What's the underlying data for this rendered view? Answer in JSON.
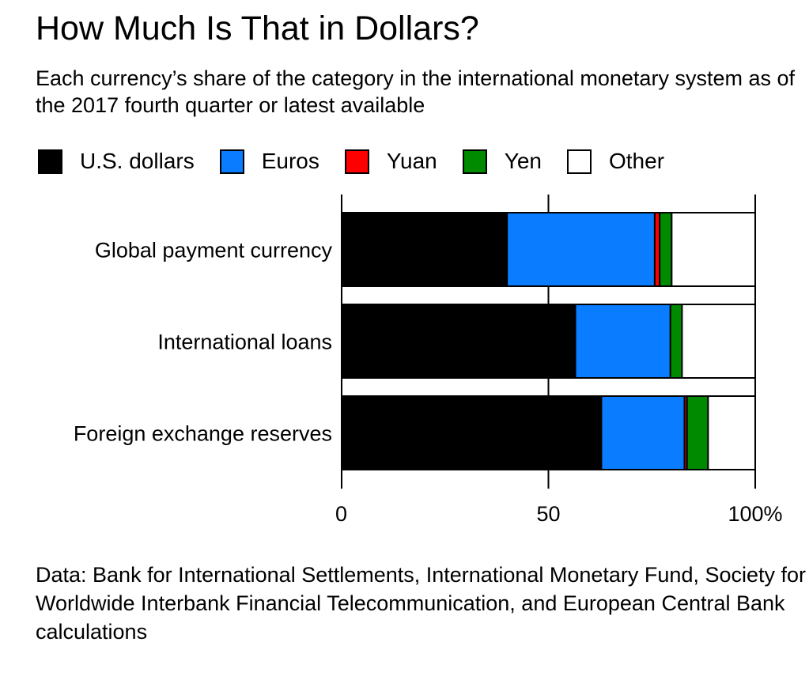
{
  "title": "How Much Is That in Dollars?",
  "subtitle": "Each currency’s share of the category in the international monetary system as of the 2017 fourth quarter or latest available",
  "source": "Data: Bank for International Settlements, International Monetary Fund, Society for Worldwide Interbank Financial Telecommunication, and European Central Bank calculations",
  "colors": {
    "usd": "#000000",
    "eur": "#0a7cff",
    "cny": "#ff0000",
    "jpy": "#008a00",
    "other": "#ffffff"
  },
  "legend": [
    {
      "key": "usd",
      "label": "U.S. dollars"
    },
    {
      "key": "eur",
      "label": "Euros"
    },
    {
      "key": "cny",
      "label": "Yuan"
    },
    {
      "key": "jpy",
      "label": "Yen"
    },
    {
      "key": "other",
      "label": "Other"
    }
  ],
  "chart_data": {
    "type": "bar",
    "orientation": "horizontal",
    "stacked": true,
    "categories": [
      "Global payment currency",
      "International loans",
      "Foreign exchange reserves"
    ],
    "series": [
      {
        "name": "U.S. dollars",
        "key": "usd",
        "values": [
          40,
          56.5,
          62.8
        ]
      },
      {
        "name": "Euros",
        "key": "eur",
        "values": [
          35.7,
          23,
          20.1
        ]
      },
      {
        "name": "Yuan",
        "key": "cny",
        "values": [
          1.2,
          0,
          0.6
        ]
      },
      {
        "name": "Yen",
        "key": "jpy",
        "values": [
          2.9,
          2.8,
          5.1
        ]
      },
      {
        "name": "Other",
        "key": "other",
        "values": [
          20.2,
          17.7,
          11.4
        ]
      }
    ],
    "xlim": [
      0,
      100
    ],
    "xticks": [
      0,
      50,
      100
    ],
    "xtick_labels": [
      "0",
      "50",
      "100%"
    ],
    "grid": true,
    "legend_position": "top-left"
  }
}
